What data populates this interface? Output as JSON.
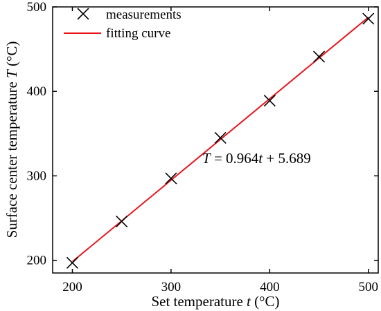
{
  "chart_data": {
    "type": "scatter",
    "xlabel": "Set temperature ",
    "xlabel_var": "t",
    "xlabel_unit": " (°C)",
    "ylabel": "Surface center temperature ",
    "ylabel_var": "T",
    "ylabel_unit": " (°C)",
    "xlim": [
      180,
      510
    ],
    "ylim": [
      185,
      500
    ],
    "xticks": [
      200,
      300,
      400,
      500
    ],
    "yticks": [
      200,
      300,
      400,
      500
    ],
    "x_tick_labels": [
      "200",
      "300",
      "400",
      "500"
    ],
    "y_tick_labels": [
      "200",
      "300",
      "400",
      "500"
    ],
    "grid": false,
    "legend_position": "top-left",
    "series": [
      {
        "name": "measurements",
        "kind": "scatter",
        "marker": "x",
        "color": "#000000",
        "x": [
          200,
          250,
          300,
          350,
          400,
          450,
          500
        ],
        "y": [
          197,
          246,
          297,
          345,
          389,
          441,
          486
        ]
      },
      {
        "name": "fitting curve",
        "kind": "line",
        "color": "#e8141c",
        "x": [
          200,
          500
        ],
        "y": [
          198.5,
          487.7
        ]
      }
    ],
    "annotation": {
      "var_T": "T",
      "eq_mid": " = 0.964",
      "var_t": "t",
      "eq_tail": " + 5.689"
    }
  }
}
